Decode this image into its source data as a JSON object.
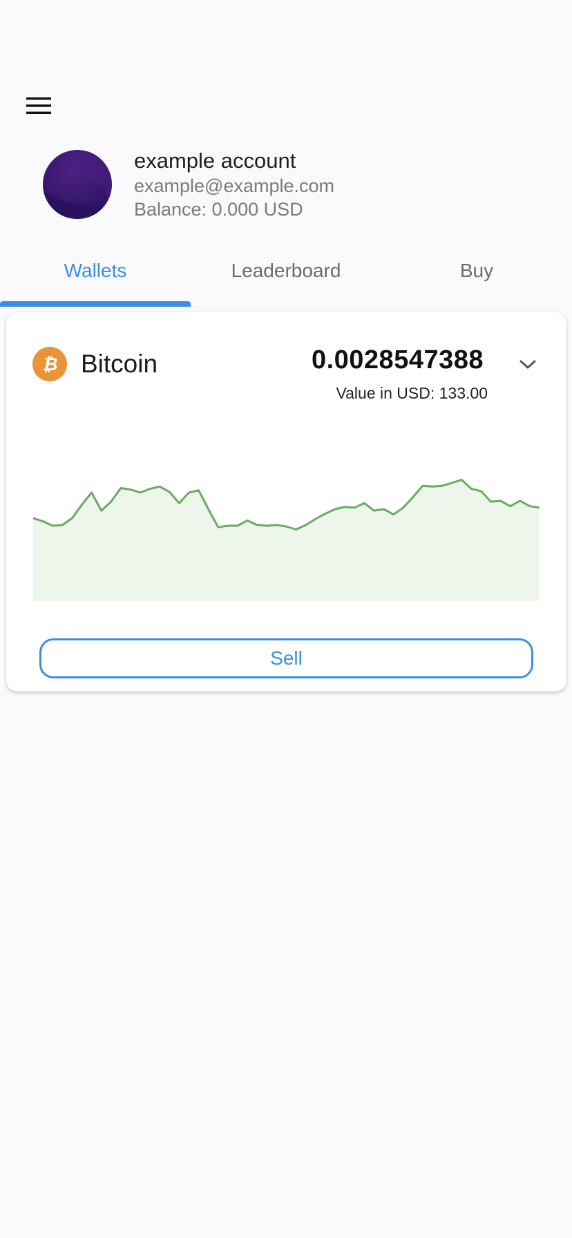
{
  "colors": {
    "accent": "#3b8ee5",
    "bitcoin": "#e99436",
    "chart_line": "#66ad5f",
    "chart_fill": "#eef6ec",
    "avatar": "#3b1670"
  },
  "account": {
    "name": "example account",
    "email": "example@example.com",
    "balance": "Balance: 0.000 USD"
  },
  "tabs": [
    {
      "label": "Wallets",
      "active": true
    },
    {
      "label": "Leaderboard",
      "active": false
    },
    {
      "label": "Buy",
      "active": false
    }
  ],
  "wallet": {
    "coin": "Bitcoin",
    "coin_icon": "bitcoin-icon",
    "amount": "0.0028547388",
    "usd_value": "Value in USD: 133.00",
    "sell_label": "Sell"
  },
  "chart_data": {
    "type": "area",
    "title": "",
    "xlabel": "",
    "ylabel": "",
    "grid": false,
    "ylim": [
      0,
      100
    ],
    "values": [
      55,
      53,
      50,
      50.5,
      55,
      64,
      72,
      60,
      66,
      75,
      74,
      72,
      74.5,
      76,
      72.5,
      65,
      72,
      73.5,
      61,
      49,
      50,
      50,
      53.5,
      50.5,
      50,
      50.5,
      49.5,
      47.5,
      50.5,
      54.5,
      58,
      61,
      62.5,
      62,
      65,
      60,
      61,
      57.5,
      62,
      69,
      76.5,
      76,
      76.5,
      78.5,
      80.5,
      74.5,
      73,
      66,
      66.5,
      63,
      66.5,
      63,
      62
    ]
  }
}
